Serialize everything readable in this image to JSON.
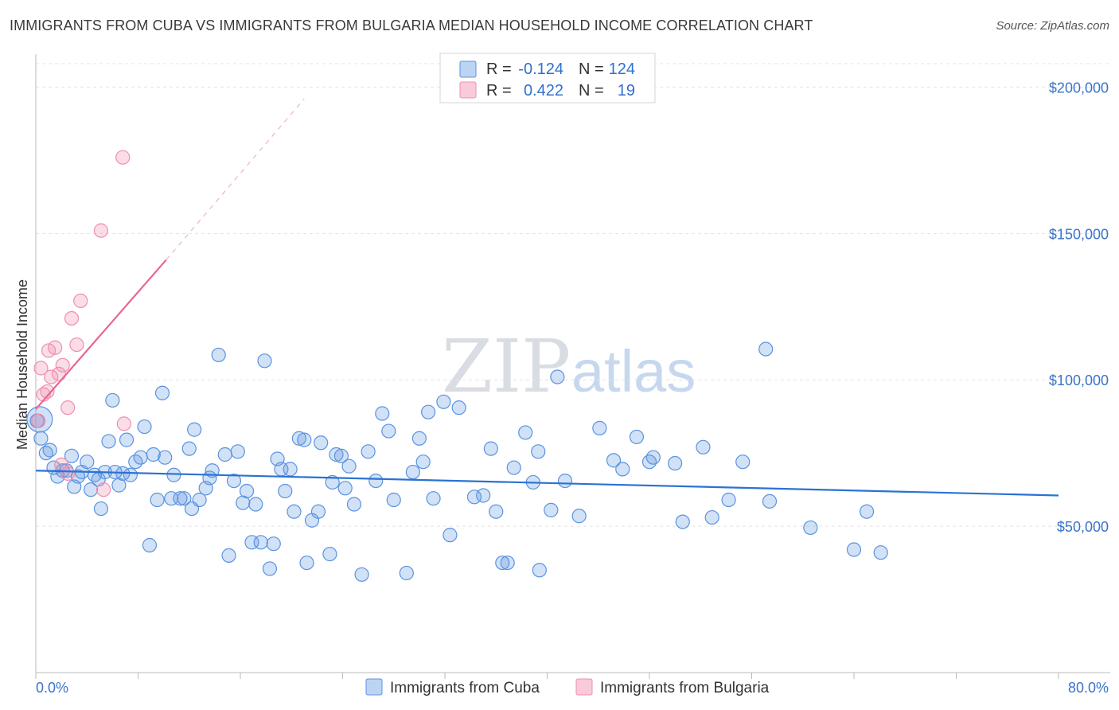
{
  "title": "IMMIGRANTS FROM CUBA VS IMMIGRANTS FROM BULGARIA MEDIAN HOUSEHOLD INCOME CORRELATION CHART",
  "source": "Source: ZipAtlas.com",
  "watermark": {
    "zip": "ZIP",
    "atlas": "atlas"
  },
  "colors": {
    "cuba": "#5b93e0",
    "cuba_line": "#2a72d3",
    "bulgaria": "#ee8fb0",
    "bulgaria_line": "#e8668f",
    "axis_label": "#3b74c9"
  },
  "legend": {
    "r_label": "R =",
    "n_label": "N =",
    "rows": [
      {
        "r": "-0.124",
        "n": "124"
      },
      {
        "r": "0.422",
        "n": "19"
      }
    ]
  },
  "chart_data": {
    "type": "scatter",
    "title": "IMMIGRANTS FROM CUBA VS IMMIGRANTS FROM BULGARIA MEDIAN HOUSEHOLD INCOME CORRELATION CHART",
    "ylabel": "Median Household Income",
    "xlabel": "",
    "xlim": [
      0,
      80
    ],
    "ylim": [
      0,
      208000
    ],
    "x_tick_labels": [
      "0.0%",
      "80.0%"
    ],
    "y_ticks": [
      50000,
      100000,
      150000,
      200000
    ],
    "y_tick_labels": [
      "$50,000",
      "$100,000",
      "$150,000",
      "$200,000"
    ],
    "grid": true,
    "legend_position": "top-center",
    "series": [
      {
        "name": "Immigrants from Cuba",
        "r": -0.124,
        "n": 124,
        "trend": {
          "x": [
            0,
            80
          ],
          "y": [
            69000,
            60500
          ],
          "dashed": false
        },
        "points": [
          [
            0.1,
            86000
          ],
          [
            0.4,
            80000
          ],
          [
            0.8,
            75000
          ],
          [
            1.1,
            76000
          ],
          [
            1.4,
            70000
          ],
          [
            1.7,
            67000
          ],
          [
            2.1,
            69000
          ],
          [
            2.4,
            69000
          ],
          [
            2.8,
            74000
          ],
          [
            3.0,
            63500
          ],
          [
            3.3,
            67000
          ],
          [
            3.6,
            68500
          ],
          [
            4.0,
            72000
          ],
          [
            4.3,
            62500
          ],
          [
            4.6,
            67500
          ],
          [
            4.9,
            66000
          ],
          [
            5.1,
            56000
          ],
          [
            5.4,
            68500
          ],
          [
            5.7,
            79000
          ],
          [
            6.0,
            93000
          ],
          [
            6.2,
            68500
          ],
          [
            6.5,
            64000
          ],
          [
            6.8,
            68000
          ],
          [
            7.1,
            79500
          ],
          [
            7.4,
            67500
          ],
          [
            7.8,
            72000
          ],
          [
            8.2,
            73500
          ],
          [
            8.5,
            84000
          ],
          [
            8.9,
            43500
          ],
          [
            9.2,
            74500
          ],
          [
            9.5,
            59000
          ],
          [
            9.9,
            95500
          ],
          [
            10.1,
            73500
          ],
          [
            10.6,
            59500
          ],
          [
            10.8,
            67500
          ],
          [
            11.3,
            59500
          ],
          [
            11.6,
            59500
          ],
          [
            12.0,
            76500
          ],
          [
            12.2,
            56000
          ],
          [
            12.4,
            83000
          ],
          [
            12.8,
            59000
          ],
          [
            13.3,
            63000
          ],
          [
            13.6,
            66500
          ],
          [
            13.8,
            69000
          ],
          [
            14.3,
            108500
          ],
          [
            14.8,
            74500
          ],
          [
            15.1,
            40000
          ],
          [
            15.5,
            65500
          ],
          [
            15.8,
            75500
          ],
          [
            16.2,
            58000
          ],
          [
            16.5,
            62000
          ],
          [
            16.9,
            44500
          ],
          [
            17.2,
            57500
          ],
          [
            17.6,
            44500
          ],
          [
            17.9,
            106500
          ],
          [
            18.3,
            35500
          ],
          [
            18.6,
            44000
          ],
          [
            18.9,
            73000
          ],
          [
            19.2,
            69500
          ],
          [
            19.5,
            62000
          ],
          [
            19.9,
            69500
          ],
          [
            20.2,
            55000
          ],
          [
            20.6,
            80000
          ],
          [
            21.0,
            79500
          ],
          [
            21.2,
            37500
          ],
          [
            21.6,
            52000
          ],
          [
            22.1,
            55000
          ],
          [
            22.3,
            78500
          ],
          [
            23.0,
            40500
          ],
          [
            23.2,
            65000
          ],
          [
            23.5,
            74500
          ],
          [
            23.9,
            74000
          ],
          [
            24.2,
            63000
          ],
          [
            24.5,
            70500
          ],
          [
            24.9,
            57500
          ],
          [
            25.5,
            33500
          ],
          [
            26.0,
            75500
          ],
          [
            26.6,
            65500
          ],
          [
            27.1,
            88500
          ],
          [
            27.6,
            82500
          ],
          [
            28.0,
            59000
          ],
          [
            29.0,
            34000
          ],
          [
            29.5,
            68500
          ],
          [
            30.0,
            80000
          ],
          [
            30.3,
            72000
          ],
          [
            30.7,
            89000
          ],
          [
            31.1,
            59500
          ],
          [
            31.9,
            92500
          ],
          [
            32.4,
            47000
          ],
          [
            33.1,
            90500
          ],
          [
            34.3,
            60000
          ],
          [
            35.0,
            60500
          ],
          [
            35.6,
            76500
          ],
          [
            36.0,
            55000
          ],
          [
            36.5,
            37500
          ],
          [
            36.9,
            37500
          ],
          [
            37.4,
            70000
          ],
          [
            38.3,
            82000
          ],
          [
            38.9,
            65000
          ],
          [
            39.4,
            35000
          ],
          [
            39.3,
            75500
          ],
          [
            40.3,
            55500
          ],
          [
            40.8,
            101000
          ],
          [
            41.4,
            65500
          ],
          [
            42.5,
            53500
          ],
          [
            44.1,
            83500
          ],
          [
            45.2,
            72500
          ],
          [
            45.9,
            69500
          ],
          [
            47.0,
            80500
          ],
          [
            48.0,
            72000
          ],
          [
            48.3,
            73500
          ],
          [
            50.0,
            71500
          ],
          [
            50.6,
            51500
          ],
          [
            52.2,
            77000
          ],
          [
            52.9,
            53000
          ],
          [
            54.2,
            59000
          ],
          [
            55.3,
            72000
          ],
          [
            57.1,
            110500
          ],
          [
            57.4,
            58500
          ],
          [
            60.6,
            49500
          ],
          [
            64.0,
            42000
          ],
          [
            65.0,
            55000
          ],
          [
            66.1,
            41000
          ],
          [
            0.3,
            86500
          ]
        ]
      },
      {
        "name": "Immigrants from Bulgaria",
        "r": 0.422,
        "n": 19,
        "trend": {
          "x": [
            0,
            10.2
          ],
          "y": [
            90000,
            141000
          ],
          "dashed": false
        },
        "trend_extension": {
          "x": [
            10.2,
            21
          ],
          "y": [
            141000,
            196000
          ],
          "dashed": true
        },
        "points": [
          [
            0.2,
            86000
          ],
          [
            0.4,
            104000
          ],
          [
            0.6,
            95000
          ],
          [
            0.9,
            96000
          ],
          [
            1.0,
            110000
          ],
          [
            1.2,
            101000
          ],
          [
            1.5,
            111000
          ],
          [
            1.8,
            102000
          ],
          [
            2.1,
            105000
          ],
          [
            2.5,
            90500
          ],
          [
            2.8,
            121000
          ],
          [
            3.2,
            112000
          ],
          [
            3.5,
            127000
          ],
          [
            5.1,
            151000
          ],
          [
            6.8,
            176000
          ],
          [
            6.9,
            85000
          ],
          [
            2.0,
            71000
          ],
          [
            2.5,
            68000
          ],
          [
            5.3,
            62500
          ]
        ]
      }
    ]
  },
  "bottom_legend": [
    "Immigrants from Cuba",
    "Immigrants from Bulgaria"
  ]
}
